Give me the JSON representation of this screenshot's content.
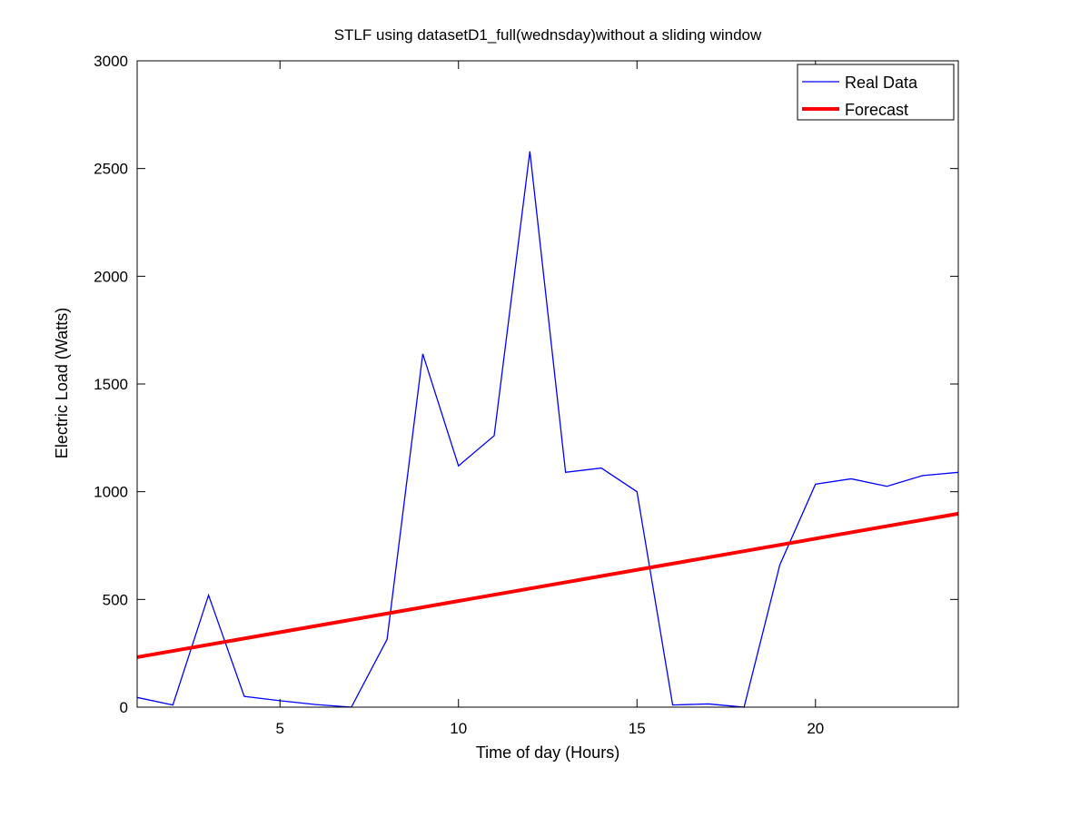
{
  "chart_data": {
    "type": "line",
    "title": "STLF using datasetD1_full(wednsday)without a sliding window",
    "xlabel": "Time of day (Hours)",
    "ylabel": "Electric Load (Watts)",
    "xlim": [
      1,
      24
    ],
    "ylim": [
      0,
      3000
    ],
    "xticks": [
      5,
      10,
      15,
      20
    ],
    "yticks": [
      0,
      500,
      1000,
      1500,
      2000,
      2500,
      3000
    ],
    "grid": false,
    "legend_position": "top-right",
    "series": [
      {
        "name": "Real Data",
        "color": "#0000ff",
        "style": "thin",
        "x": [
          1,
          2,
          3,
          4,
          5,
          6,
          7,
          8,
          9,
          10,
          11,
          12,
          13,
          14,
          15,
          16,
          17,
          18,
          19,
          20,
          21,
          22,
          23,
          24
        ],
        "y": [
          45,
          10,
          520,
          50,
          30,
          12,
          0,
          315,
          1640,
          1120,
          1260,
          2580,
          1090,
          1110,
          1000,
          10,
          15,
          0,
          660,
          1035,
          1060,
          1025,
          1075,
          1090
        ]
      },
      {
        "name": "Forecast",
        "color": "#ff0000",
        "style": "thick",
        "x": [
          1,
          24
        ],
        "y": [
          232,
          898
        ]
      }
    ]
  }
}
